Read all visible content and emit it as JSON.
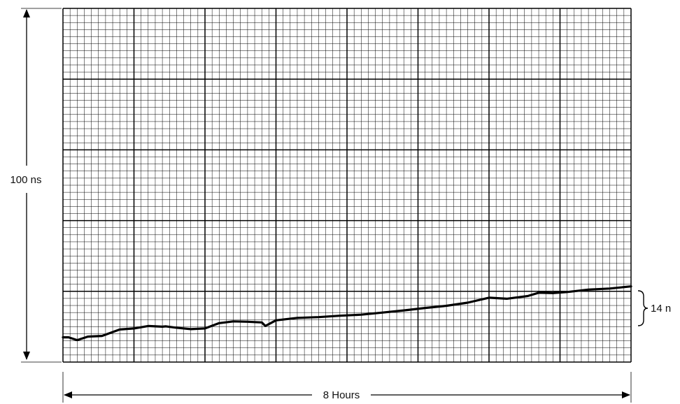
{
  "chart_data": {
    "type": "line",
    "title": "",
    "y_span_label": "100 ns",
    "x_span_label": "8 Hours",
    "bracket_label": "14 n",
    "xlim": [
      0,
      8
    ],
    "ylim": [
      0,
      100
    ],
    "x_unit": "hours",
    "y_unit": "ns",
    "grid": true,
    "grid_major": {
      "x": 8,
      "y": 5
    },
    "grid_minor_per_major": 10,
    "series": [
      {
        "x": [
          0,
          0.08,
          0.2,
          0.35,
          0.55,
          0.8,
          1.0,
          1.2,
          1.4,
          1.45,
          1.6,
          1.8,
          2.0,
          2.2,
          2.4,
          2.6,
          2.8,
          2.85,
          3.0,
          3.3,
          3.6,
          3.9,
          4.2,
          4.5,
          4.8,
          5.1,
          5.4,
          5.7,
          6.0,
          6.25,
          6.55,
          6.7,
          6.9,
          7.1,
          7.4,
          7.7,
          8.0
        ],
        "values": [
          7.0,
          7.0,
          6.2,
          7.2,
          7.4,
          9.2,
          9.5,
          10.2,
          10.0,
          10.1,
          9.7,
          9.3,
          9.5,
          11.0,
          11.5,
          11.4,
          11.2,
          10.2,
          11.8,
          12.5,
          12.7,
          13.1,
          13.4,
          14.0,
          14.6,
          15.3,
          15.9,
          16.8,
          18.2,
          17.9,
          18.7,
          19.6,
          19.5,
          19.8,
          20.5,
          20.8,
          21.4
        ]
      }
    ],
    "bracket_range": [
      7,
      21
    ]
  }
}
